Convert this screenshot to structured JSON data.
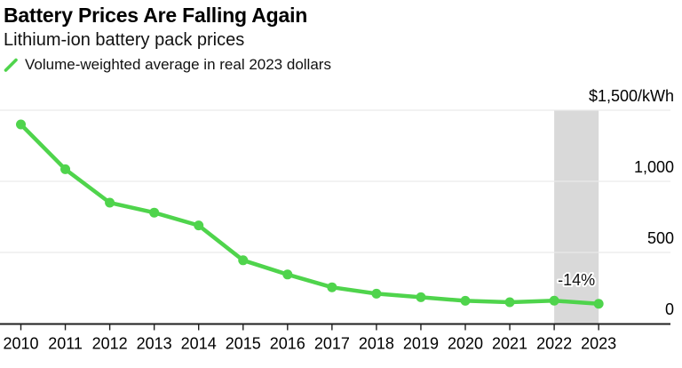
{
  "header": {
    "title": "Battery Prices Are Falling Again",
    "subtitle": "Lithium-ion battery pack prices",
    "legend": {
      "icon": "green-slash-icon",
      "label": "Volume-weighted average in real 2023 dollars"
    }
  },
  "chart_data": {
    "type": "line",
    "title": "Battery Prices Are Falling Again",
    "subtitle": "Lithium-ion battery pack prices",
    "series": [
      {
        "name": "Volume-weighted average in real 2023 dollars",
        "values": [
          1400,
          1085,
          850,
          780,
          690,
          445,
          345,
          255,
          210,
          185,
          160,
          150,
          161,
          139
        ]
      }
    ],
    "categories": [
      "2010",
      "2011",
      "2012",
      "2013",
      "2014",
      "2015",
      "2016",
      "2017",
      "2018",
      "2019",
      "2020",
      "2021",
      "2022",
      "2023"
    ],
    "unit": "$/kWh",
    "xlabel": "",
    "ylabel": "$/kWh",
    "ylim": [
      0,
      1500
    ],
    "yticks": [
      {
        "value": 0,
        "label": "0"
      },
      {
        "value": 500,
        "label": "500"
      },
      {
        "value": 1000,
        "label": "1,000"
      },
      {
        "value": 1500,
        "label": "$1,500/kWh"
      }
    ],
    "grid": true,
    "legend_position": "top-left",
    "highlight_band": {
      "from": "2022",
      "to": "2023",
      "label": "-14%"
    },
    "colors": {
      "line": "#4fd44c",
      "band": "#d9d9d9",
      "grid": "#e9e9e9",
      "axis": "#1f1f1f",
      "text": "#000000",
      "background": "#ffffff"
    }
  }
}
